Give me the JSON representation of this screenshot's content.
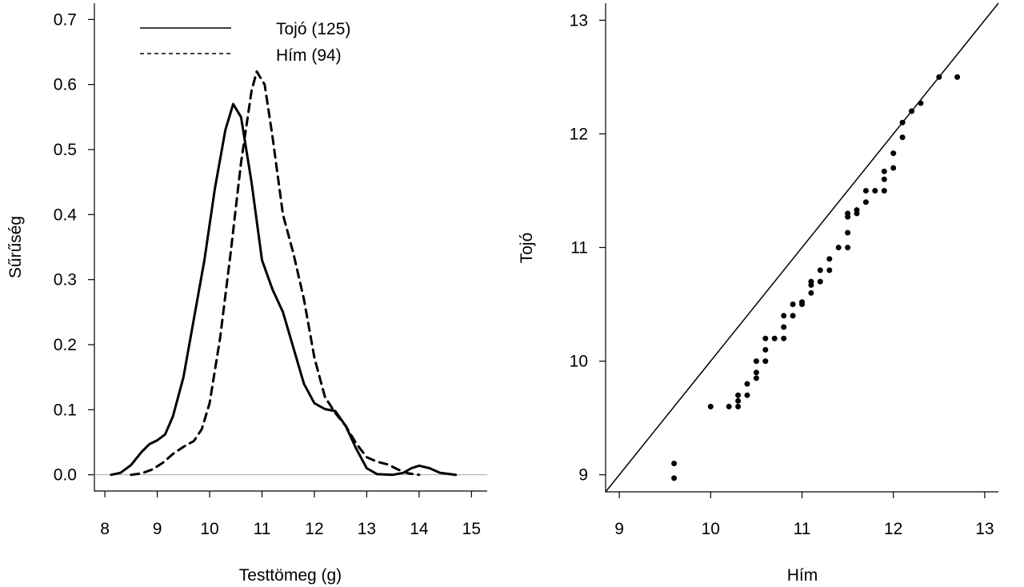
{
  "chart_data": [
    {
      "type": "line",
      "xlabel": "Testtömeg (g)",
      "ylabel": "Sűrűség",
      "xlim": [
        7.8,
        15.3
      ],
      "ylim": [
        -0.025,
        0.725
      ],
      "xticks": [
        "8",
        "9",
        "10",
        "11",
        "12",
        "13",
        "14",
        "15"
      ],
      "yticks": [
        "0.0",
        "0.1",
        "0.2",
        "0.3",
        "0.4",
        "0.5",
        "0.6",
        "0.7"
      ],
      "baseline": 0,
      "baseline_color": "#aaaaaa",
      "legend_position": "top-left",
      "series": [
        {
          "name": "Tojó (125)",
          "style": "solid",
          "points": [
            [
              8.12,
              0.0
            ],
            [
              8.3,
              0.003
            ],
            [
              8.5,
              0.015
            ],
            [
              8.7,
              0.035
            ],
            [
              8.85,
              0.047
            ],
            [
              9.0,
              0.053
            ],
            [
              9.15,
              0.062
            ],
            [
              9.3,
              0.09
            ],
            [
              9.5,
              0.15
            ],
            [
              9.7,
              0.24
            ],
            [
              9.9,
              0.33
            ],
            [
              10.1,
              0.44
            ],
            [
              10.3,
              0.53
            ],
            [
              10.45,
              0.57
            ],
            [
              10.6,
              0.55
            ],
            [
              10.8,
              0.45
            ],
            [
              11.0,
              0.33
            ],
            [
              11.2,
              0.285
            ],
            [
              11.4,
              0.25
            ],
            [
              11.6,
              0.195
            ],
            [
              11.8,
              0.14
            ],
            [
              12.0,
              0.11
            ],
            [
              12.2,
              0.101
            ],
            [
              12.4,
              0.098
            ],
            [
              12.6,
              0.075
            ],
            [
              12.8,
              0.04
            ],
            [
              13.0,
              0.01
            ],
            [
              13.2,
              0.001
            ],
            [
              13.5,
              0.0
            ],
            [
              13.7,
              0.003
            ],
            [
              13.85,
              0.01
            ],
            [
              14.0,
              0.014
            ],
            [
              14.2,
              0.01
            ],
            [
              14.4,
              0.003
            ],
            [
              14.7,
              0.0
            ]
          ]
        },
        {
          "name": "Hím (94)",
          "style": "dashed",
          "points": [
            [
              8.5,
              0.0
            ],
            [
              8.7,
              0.002
            ],
            [
              8.9,
              0.008
            ],
            [
              9.1,
              0.018
            ],
            [
              9.3,
              0.032
            ],
            [
              9.5,
              0.043
            ],
            [
              9.7,
              0.052
            ],
            [
              9.85,
              0.07
            ],
            [
              10.0,
              0.11
            ],
            [
              10.2,
              0.21
            ],
            [
              10.4,
              0.34
            ],
            [
              10.6,
              0.48
            ],
            [
              10.8,
              0.59
            ],
            [
              10.9,
              0.62
            ],
            [
              11.05,
              0.6
            ],
            [
              11.2,
              0.52
            ],
            [
              11.4,
              0.4
            ],
            [
              11.6,
              0.34
            ],
            [
              11.8,
              0.27
            ],
            [
              12.0,
              0.18
            ],
            [
              12.2,
              0.12
            ],
            [
              12.4,
              0.095
            ],
            [
              12.6,
              0.075
            ],
            [
              12.8,
              0.048
            ],
            [
              13.0,
              0.027
            ],
            [
              13.2,
              0.02
            ],
            [
              13.4,
              0.016
            ],
            [
              13.6,
              0.008
            ],
            [
              13.8,
              0.002
            ],
            [
              14.0,
              0.0
            ]
          ]
        }
      ]
    },
    {
      "type": "scatter",
      "xlabel": "Hím",
      "ylabel": "Tojó",
      "xlim": [
        8.85,
        13.15
      ],
      "ylim": [
        8.85,
        13.15
      ],
      "xticks": [
        "9",
        "10",
        "11",
        "12",
        "13"
      ],
      "yticks": [
        "9",
        "10",
        "11",
        "12",
        "13"
      ],
      "reference_line": "y = x",
      "points": [
        [
          9.6,
          8.97
        ],
        [
          9.6,
          9.1
        ],
        [
          10.0,
          9.6
        ],
        [
          10.2,
          9.6
        ],
        [
          10.3,
          9.6
        ],
        [
          10.3,
          9.65
        ],
        [
          10.3,
          9.7
        ],
        [
          10.4,
          9.7
        ],
        [
          10.4,
          9.8
        ],
        [
          10.5,
          9.85
        ],
        [
          10.5,
          9.9
        ],
        [
          10.5,
          10.0
        ],
        [
          10.6,
          10.0
        ],
        [
          10.6,
          10.1
        ],
        [
          10.6,
          10.2
        ],
        [
          10.7,
          10.2
        ],
        [
          10.8,
          10.2
        ],
        [
          10.8,
          10.3
        ],
        [
          10.8,
          10.4
        ],
        [
          10.9,
          10.4
        ],
        [
          10.9,
          10.5
        ],
        [
          11.0,
          10.5
        ],
        [
          11.0,
          10.52
        ],
        [
          11.1,
          10.6
        ],
        [
          11.1,
          10.67
        ],
        [
          11.1,
          10.7
        ],
        [
          11.2,
          10.7
        ],
        [
          11.2,
          10.8
        ],
        [
          11.3,
          10.8
        ],
        [
          11.3,
          10.9
        ],
        [
          11.4,
          11.0
        ],
        [
          11.5,
          11.0
        ],
        [
          11.5,
          11.13
        ],
        [
          11.5,
          11.27
        ],
        [
          11.5,
          11.3
        ],
        [
          11.6,
          11.3
        ],
        [
          11.6,
          11.33
        ],
        [
          11.7,
          11.4
        ],
        [
          11.7,
          11.5
        ],
        [
          11.8,
          11.5
        ],
        [
          11.9,
          11.5
        ],
        [
          11.9,
          11.6
        ],
        [
          11.9,
          11.67
        ],
        [
          12.0,
          11.7
        ],
        [
          12.0,
          11.83
        ],
        [
          12.1,
          11.97
        ],
        [
          12.1,
          12.1
        ],
        [
          12.2,
          12.2
        ],
        [
          12.3,
          12.27
        ],
        [
          12.5,
          12.5
        ],
        [
          12.7,
          12.5
        ]
      ]
    }
  ]
}
